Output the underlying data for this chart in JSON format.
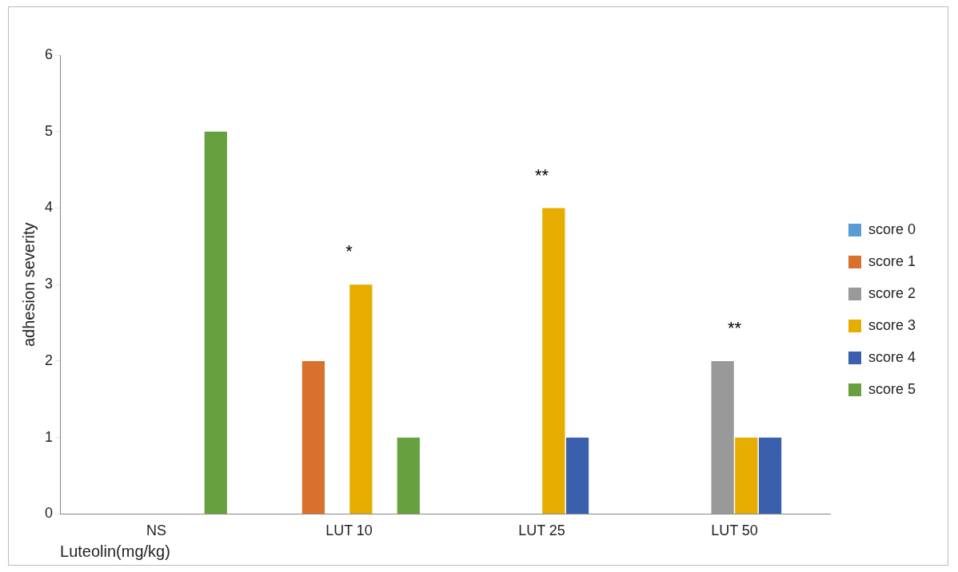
{
  "chart_data": {
    "type": "bar",
    "xlabel": "Luteolin(mg/kg)",
    "ylabel": "adhesion severity",
    "categories": [
      "NS",
      "LUT 10",
      "LUT 25",
      "LUT 50"
    ],
    "series": [
      {
        "name": "score 0",
        "color": "#5b9bd5",
        "values": [
          0,
          0,
          0,
          0
        ]
      },
      {
        "name": "score 1",
        "color": "#d8702e",
        "values": [
          0,
          2,
          0,
          0
        ]
      },
      {
        "name": "score 2",
        "color": "#999999",
        "values": [
          0,
          0,
          0,
          2
        ]
      },
      {
        "name": "score 3",
        "color": "#e6ac00",
        "values": [
          0,
          3,
          4,
          1
        ]
      },
      {
        "name": "score 4",
        "color": "#3a5fad",
        "values": [
          0,
          0,
          1,
          1
        ]
      },
      {
        "name": "score 5",
        "color": "#66a03f",
        "values": [
          5,
          1,
          0,
          0
        ]
      }
    ],
    "ylim": [
      0,
      6
    ],
    "yticks": [
      0,
      1,
      2,
      3,
      4,
      5,
      6
    ],
    "grid": false,
    "legend": "right",
    "annotations": [
      "*",
      "**",
      "**"
    ]
  }
}
